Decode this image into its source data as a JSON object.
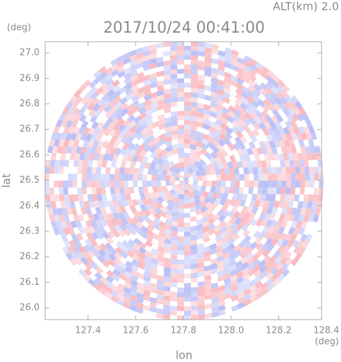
{
  "chart_data": {
    "type": "radar-ppi",
    "title": "2017/10/24 00:41:00",
    "altitude_label": "ALT(km)  2.0",
    "x_label": "lon",
    "x_unit": "(deg)",
    "y_label": "lat",
    "y_unit": "(deg)",
    "xlim": [
      127.22,
      128.38
    ],
    "ylim": [
      25.954,
      27.044
    ],
    "xticks": [
      127.4,
      127.6,
      127.8,
      {
        "value": 128.0,
        "label": "128.0"
      },
      128.2,
      128.4
    ],
    "yticks": [
      {
        "value": 26.0,
        "label": "26.0"
      },
      26.1,
      26.2,
      26.3,
      26.4,
      26.5,
      26.6,
      26.7,
      26.8,
      26.9,
      {
        "value": 27.0,
        "label": "27.0"
      }
    ]
  }
}
